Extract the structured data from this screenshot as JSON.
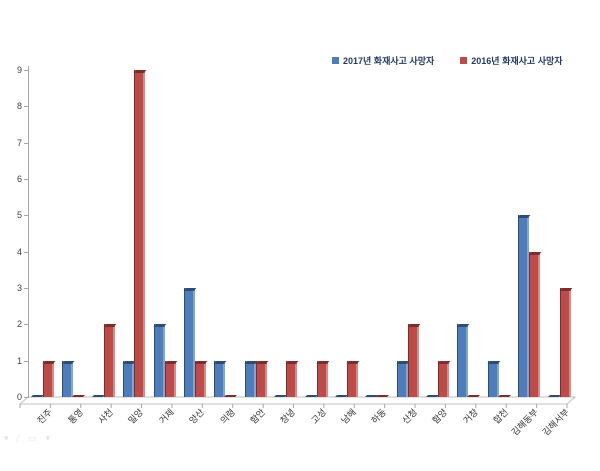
{
  "page": {
    "background": "#ffffff"
  },
  "watermark": {
    "glyphs": [
      "▾",
      "∕",
      "▭",
      "▾"
    ]
  },
  "chart_data": {
    "type": "bar",
    "style": "3d-clustered-column",
    "title": "",
    "xlabel": "",
    "ylabel": "",
    "categories": [
      "진주",
      "통영",
      "사천",
      "밀양",
      "거제",
      "양산",
      "의령",
      "함안",
      "창녕",
      "고성",
      "남해",
      "하동",
      "산청",
      "함양",
      "거창",
      "합천",
      "김해동부",
      "김해서부"
    ],
    "series": [
      {
        "name": "2017년 화재사고 사망자",
        "face": "#4D7EBB",
        "top": "#2F4D73",
        "side": "#81A7CF",
        "values": [
          0,
          1,
          0,
          1,
          2,
          3,
          1,
          1,
          0,
          0,
          0,
          0,
          1,
          0,
          2,
          1,
          5,
          0
        ]
      },
      {
        "name": "2016년 화재사고 사망자",
        "face": "#BE4B48",
        "top": "#7B2F2D",
        "side": "#D58C8A",
        "values": [
          1,
          0,
          2,
          9,
          1,
          1,
          0,
          1,
          1,
          1,
          1,
          0,
          2,
          1,
          0,
          0,
          4,
          3
        ]
      }
    ],
    "ylim": [
      0,
      9
    ],
    "yticks": [
      0,
      1,
      2,
      3,
      4,
      5,
      6,
      7,
      8,
      9
    ],
    "grid": false,
    "legend_position": "top-center",
    "colors": {
      "axis": "#A6A6A6",
      "floor_border": "#C0C0C0",
      "tick_text": "#404040",
      "category_text": "#333333",
      "legend_text": "#233A63"
    }
  }
}
